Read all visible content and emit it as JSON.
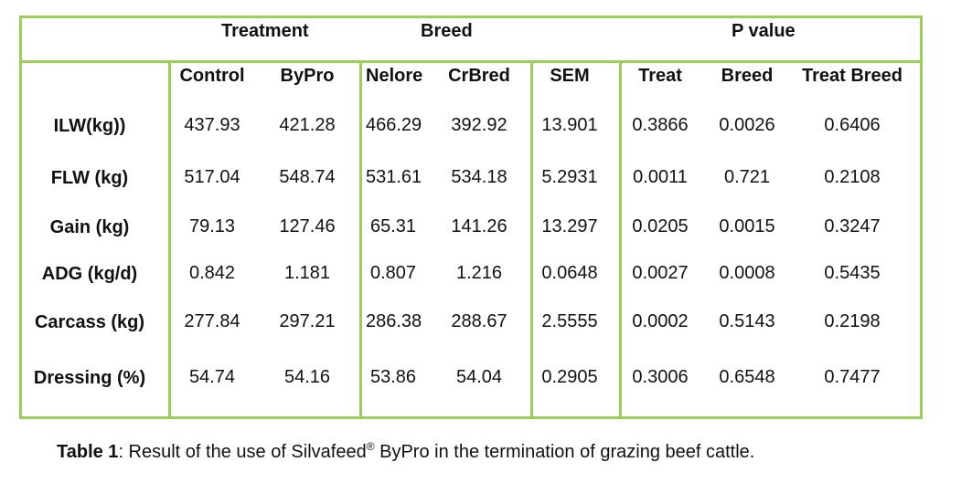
{
  "groups": {
    "treatment": "Treatment",
    "breed": "Breed",
    "pvalue": "P value"
  },
  "columns": [
    "Control",
    "ByPro",
    "Nelore",
    "CrBred",
    "SEM",
    "Treat",
    "Breed",
    "Treat Breed"
  ],
  "rows": [
    {
      "label": "ILW(kg))",
      "values": [
        "437.93",
        "421.28",
        "466.29",
        "392.92",
        "13.901",
        "0.3866",
        "0.0026",
        "0.6406"
      ]
    },
    {
      "label": "FLW (kg)",
      "values": [
        "517.04",
        "548.74",
        "531.61",
        "534.18",
        "5.2931",
        "0.0011",
        "0.721",
        "0.2108"
      ]
    },
    {
      "label": "Gain (kg)",
      "values": [
        "79.13",
        "127.46",
        "65.31",
        "141.26",
        "13.297",
        "0.0205",
        "0.0015",
        "0.3247"
      ]
    },
    {
      "label": "ADG (kg/d)",
      "values": [
        "0.842",
        "1.181",
        "0.807",
        "1.216",
        "0.0648",
        "0.0027",
        "0.0008",
        "0.5435"
      ]
    },
    {
      "label": "Carcass (kg)",
      "values": [
        "277.84",
        "297.21",
        "286.38",
        "288.67",
        "2.5555",
        "0.0002",
        "0.5143",
        "0.2198"
      ]
    },
    {
      "label": "Dressing (%)",
      "values": [
        "54.74",
        "54.16",
        "53.86",
        "54.04",
        "0.2905",
        "0.3006",
        "0.6548",
        "0.7477"
      ]
    }
  ],
  "caption": {
    "label": "Table 1",
    "prefix": ": Result of the use of Silvafeed",
    "reg": "®",
    "suffix": " ByPro in the termination of grazing beef cattle."
  }
}
